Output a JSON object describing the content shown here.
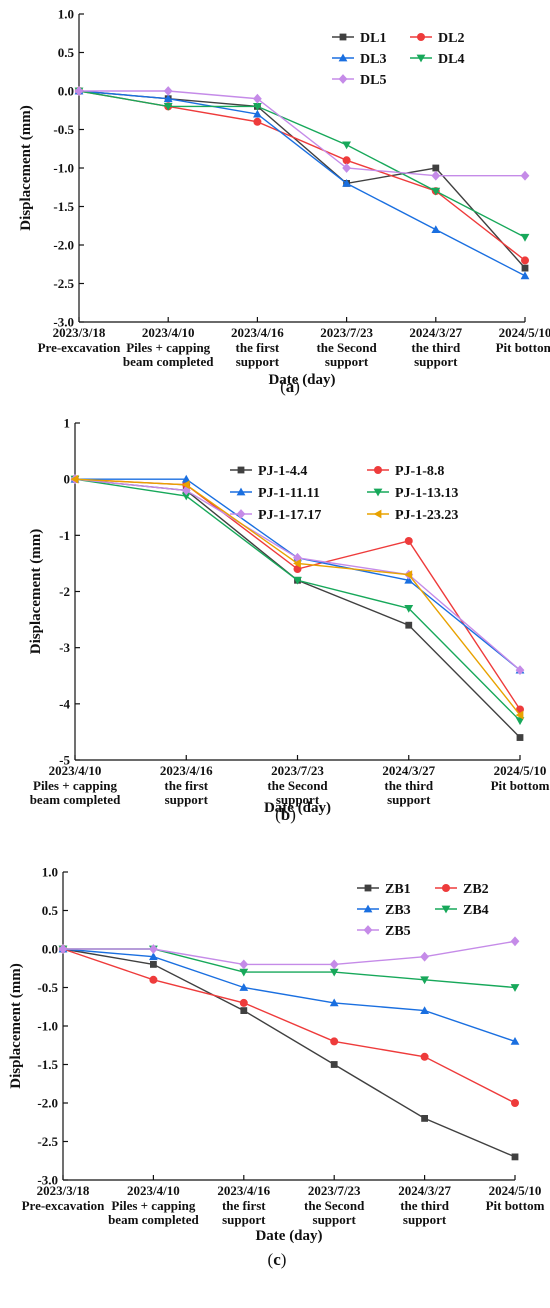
{
  "chart_data": [
    {
      "type": "line",
      "caption_letter": "a",
      "ylabel": "Displacement (mm)",
      "xlabel": "Date (day)",
      "ylim": [
        -3.0,
        1.0
      ],
      "yticks": [
        "1.0",
        "0.5",
        "0.0",
        "-0.5",
        "-1.0",
        "-1.5",
        "-2.0",
        "-2.5",
        "-3.0"
      ],
      "ytick_values": [
        1.0,
        0.5,
        0.0,
        -0.5,
        -1.0,
        -1.5,
        -2.0,
        -2.5,
        -3.0
      ],
      "categories": [
        {
          "date": "2023/3/18",
          "stage": [
            "Pre-excavation"
          ]
        },
        {
          "date": "2023/4/10",
          "stage": [
            "Piles + capping",
            "beam completed"
          ]
        },
        {
          "date": "2023/4/16",
          "stage": [
            "the first",
            "support"
          ]
        },
        {
          "date": "2023/7/23",
          "stage": [
            "the Second",
            "support"
          ]
        },
        {
          "date": "2024/3/27",
          "stage": [
            "the third",
            "support"
          ]
        },
        {
          "date": "2024/5/10",
          "stage": [
            "Pit bottom"
          ]
        }
      ],
      "legend_position": "top-right",
      "series": [
        {
          "name": "DL1",
          "color": "#404040",
          "marker": "square",
          "values": [
            0,
            -0.1,
            -0.2,
            -1.2,
            -1.0,
            -2.3
          ]
        },
        {
          "name": "DL2",
          "color": "#ee3b3b",
          "marker": "circle",
          "values": [
            0,
            -0.2,
            -0.4,
            -0.9,
            -1.3,
            -2.2
          ]
        },
        {
          "name": "DL3",
          "color": "#1a6fe0",
          "marker": "triangle-up",
          "values": [
            0,
            -0.1,
            -0.3,
            -1.2,
            -1.8,
            -2.4
          ]
        },
        {
          "name": "DL4",
          "color": "#17a85a",
          "marker": "triangle-down",
          "values": [
            0,
            -0.2,
            -0.2,
            -0.7,
            -1.3,
            -1.9
          ]
        },
        {
          "name": "DL5",
          "color": "#c58be8",
          "marker": "diamond",
          "values": [
            0,
            0,
            -0.1,
            -1.0,
            -1.1,
            -1.1
          ]
        }
      ]
    },
    {
      "type": "line",
      "caption_letter": "b",
      "ylabel": "Displacement (mm)",
      "xlabel": "Date (day)",
      "ylim": [
        -5,
        1
      ],
      "yticks": [
        "1",
        "0",
        "-1",
        "-2",
        "-3",
        "-4",
        "-5"
      ],
      "ytick_values": [
        1,
        0,
        -1,
        -2,
        -3,
        -4,
        -5
      ],
      "categories": [
        {
          "date": "2023/4/10",
          "stage": [
            "Piles + capping",
            "beam completed"
          ]
        },
        {
          "date": "2023/4/16",
          "stage": [
            "the first",
            "support"
          ]
        },
        {
          "date": "2023/7/23",
          "stage": [
            "the Second",
            "support"
          ]
        },
        {
          "date": "2024/3/27",
          "stage": [
            "the third",
            "support"
          ]
        },
        {
          "date": "2024/5/10",
          "stage": [
            "Pit bottom"
          ]
        }
      ],
      "legend_position": "top-right",
      "series": [
        {
          "name": "PJ-1-4.4",
          "color": "#404040",
          "marker": "square",
          "values": [
            0,
            -0.2,
            -1.8,
            -2.6,
            -4.6
          ]
        },
        {
          "name": "PJ-1-8.8",
          "color": "#ee3b3b",
          "marker": "circle",
          "values": [
            0,
            -0.1,
            -1.6,
            -1.1,
            -4.1
          ]
        },
        {
          "name": "PJ-1-11.11",
          "color": "#1a6fe0",
          "marker": "triangle-up",
          "values": [
            0,
            0,
            -1.4,
            -1.8,
            -3.4
          ]
        },
        {
          "name": "PJ-1-13.13",
          "color": "#17a85a",
          "marker": "triangle-down",
          "values": [
            0,
            -0.3,
            -1.8,
            -2.3,
            -4.3
          ]
        },
        {
          "name": "PJ-1-17.17",
          "color": "#c58be8",
          "marker": "diamond",
          "values": [
            0,
            -0.2,
            -1.4,
            -1.7,
            -3.4
          ]
        },
        {
          "name": "PJ-1-23.23",
          "color": "#e8a200",
          "marker": "triangle-left",
          "values": [
            0,
            -0.1,
            -1.5,
            -1.7,
            -4.2
          ]
        }
      ]
    },
    {
      "type": "line",
      "caption_letter": "c",
      "ylabel": "Displacement (mm)",
      "xlabel": "Date (day)",
      "ylim": [
        -3.0,
        1.0
      ],
      "yticks": [
        "1.0",
        "0.5",
        "0.0",
        "-0.5",
        "-1.0",
        "-1.5",
        "-2.0",
        "-2.5",
        "-3.0"
      ],
      "ytick_values": [
        1.0,
        0.5,
        0.0,
        -0.5,
        -1.0,
        -1.5,
        -2.0,
        -2.5,
        -3.0
      ],
      "categories": [
        {
          "date": "2023/3/18",
          "stage": [
            "Pre-excavation"
          ]
        },
        {
          "date": "2023/4/10",
          "stage": [
            "Piles + capping",
            "beam completed"
          ]
        },
        {
          "date": "2023/4/16",
          "stage": [
            "the first",
            "support"
          ]
        },
        {
          "date": "2023/7/23",
          "stage": [
            "the Second",
            "support"
          ]
        },
        {
          "date": "2024/3/27",
          "stage": [
            "the third",
            "support"
          ]
        },
        {
          "date": "2024/5/10",
          "stage": [
            "Pit bottom"
          ]
        }
      ],
      "legend_position": "top-right",
      "series": [
        {
          "name": "ZB1",
          "color": "#404040",
          "marker": "square",
          "values": [
            0,
            -0.2,
            -0.8,
            -1.5,
            -2.2,
            -2.7
          ]
        },
        {
          "name": "ZB2",
          "color": "#ee3b3b",
          "marker": "circle",
          "values": [
            0,
            -0.4,
            -0.7,
            -1.2,
            -1.4,
            -2.0
          ]
        },
        {
          "name": "ZB3",
          "color": "#1a6fe0",
          "marker": "triangle-up",
          "values": [
            0,
            -0.1,
            -0.5,
            -0.7,
            -0.8,
            -1.2
          ]
        },
        {
          "name": "ZB4",
          "color": "#17a85a",
          "marker": "triangle-down",
          "values": [
            0,
            0,
            -0.3,
            -0.3,
            -0.4,
            -0.5
          ]
        },
        {
          "name": "ZB5",
          "color": "#c58be8",
          "marker": "diamond",
          "values": [
            0,
            0,
            -0.2,
            -0.2,
            -0.1,
            0.1
          ]
        }
      ]
    }
  ]
}
